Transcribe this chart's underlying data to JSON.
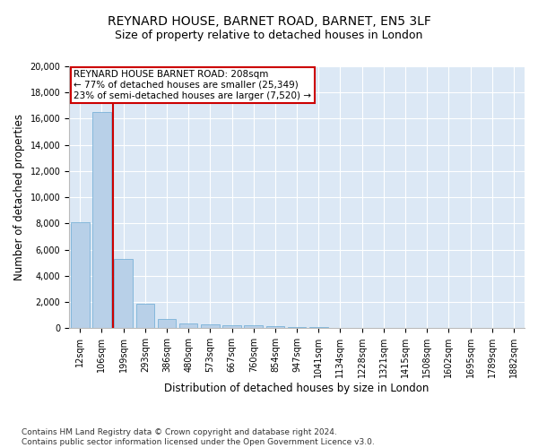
{
  "title1": "REYNARD HOUSE, BARNET ROAD, BARNET, EN5 3LF",
  "title2": "Size of property relative to detached houses in London",
  "xlabel": "Distribution of detached houses by size in London",
  "ylabel": "Number of detached properties",
  "categories": [
    "12sqm",
    "106sqm",
    "199sqm",
    "293sqm",
    "386sqm",
    "480sqm",
    "573sqm",
    "667sqm",
    "760sqm",
    "854sqm",
    "947sqm",
    "1041sqm",
    "1134sqm",
    "1228sqm",
    "1321sqm",
    "1415sqm",
    "1508sqm",
    "1602sqm",
    "1695sqm",
    "1789sqm",
    "1882sqm"
  ],
  "values": [
    8100,
    16500,
    5300,
    1850,
    700,
    380,
    280,
    230,
    200,
    160,
    100,
    50,
    0,
    0,
    0,
    0,
    0,
    0,
    0,
    0,
    0
  ],
  "bar_color": "#b8d0e8",
  "bar_edge_color": "#6aaad4",
  "vline_color": "#cc0000",
  "annotation_text": "REYNARD HOUSE BARNET ROAD: 208sqm\n← 77% of detached houses are smaller (25,349)\n23% of semi-detached houses are larger (7,520) →",
  "annotation_box_color": "#cc0000",
  "ylim": [
    0,
    20000
  ],
  "yticks": [
    0,
    2000,
    4000,
    6000,
    8000,
    10000,
    12000,
    14000,
    16000,
    18000,
    20000
  ],
  "footnote": "Contains HM Land Registry data © Crown copyright and database right 2024.\nContains public sector information licensed under the Open Government Licence v3.0.",
  "fig_bg_color": "#ffffff",
  "plot_bg_color": "#dce8f5",
  "grid_color": "#ffffff",
  "title1_fontsize": 10,
  "title2_fontsize": 9,
  "axis_label_fontsize": 8.5,
  "tick_fontsize": 7,
  "footnote_fontsize": 6.5,
  "annotation_fontsize": 7.5
}
